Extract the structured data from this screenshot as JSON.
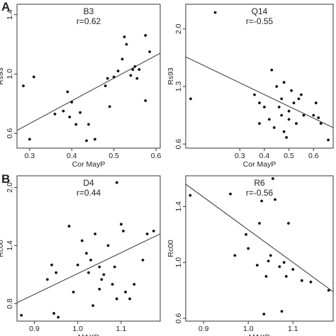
{
  "panel_letters": [
    "A",
    "B"
  ],
  "chart_data": [
    {
      "type": "scatter",
      "title": "B3",
      "subtitle": "r=0.62",
      "xlabel": "Cor MayP",
      "ylabel": "Rs93",
      "xlim": [
        0.27,
        0.61
      ],
      "ylim": [
        0.5,
        1.47
      ],
      "xticks": [
        0.3,
        0.4,
        0.5,
        0.6
      ],
      "xtick_labels": [
        "0.3",
        "0.4",
        "0.5",
        "0.6"
      ],
      "yticks": [
        0.6,
        1.0,
        1.4
      ],
      "ytick_labels": [
        "0.6",
        "1.0",
        "1.4"
      ],
      "fit_line": [
        [
          0.27,
          0.62
        ],
        [
          0.61,
          1.14
        ]
      ],
      "points": [
        [
          0.285,
          0.92
        ],
        [
          0.3,
          0.56
        ],
        [
          0.31,
          0.98
        ],
        [
          0.36,
          0.73
        ],
        [
          0.38,
          0.75
        ],
        [
          0.39,
          0.88
        ],
        [
          0.395,
          0.71
        ],
        [
          0.4,
          0.81
        ],
        [
          0.41,
          0.66
        ],
        [
          0.42,
          0.74
        ],
        [
          0.435,
          0.55
        ],
        [
          0.44,
          0.66
        ],
        [
          0.455,
          0.56
        ],
        [
          0.48,
          0.92
        ],
        [
          0.485,
          0.97
        ],
        [
          0.49,
          0.78
        ],
        [
          0.5,
          0.98
        ],
        [
          0.51,
          1.02
        ],
        [
          0.52,
          1.1
        ],
        [
          0.525,
          1.25
        ],
        [
          0.53,
          1.2
        ],
        [
          0.54,
          0.99
        ],
        [
          0.545,
          1.03
        ],
        [
          0.55,
          1.05
        ],
        [
          0.555,
          0.97
        ],
        [
          0.56,
          1.03
        ],
        [
          0.575,
          0.82
        ],
        [
          0.575,
          1.26
        ],
        [
          0.585,
          1.15
        ]
      ]
    },
    {
      "type": "scatter",
      "title": "Q14",
      "subtitle": "r=-0.55",
      "xlabel": "Cor MayP",
      "ylabel": "Rs93",
      "xlim": [
        0.08,
        0.68
      ],
      "ylim": [
        0.55,
        2.3
      ],
      "xticks": [
        0.3,
        0.4,
        0.5,
        0.6
      ],
      "xtick_labels": [
        "0.3",
        "0.4",
        "0.5",
        "0.6"
      ],
      "yticks": [
        0.6,
        1.3,
        2.0
      ],
      "ytick_labels": [
        "0.6",
        "1.3",
        "2.0"
      ],
      "fit_line": [
        [
          0.08,
          1.66
        ],
        [
          0.68,
          0.8
        ]
      ],
      "points": [
        [
          0.1,
          1.15
        ],
        [
          0.2,
          2.2
        ],
        [
          0.36,
          1.2
        ],
        [
          0.38,
          1.1
        ],
        [
          0.38,
          0.85
        ],
        [
          0.4,
          1.05
        ],
        [
          0.42,
          0.9
        ],
        [
          0.43,
          1.5
        ],
        [
          0.44,
          0.8
        ],
        [
          0.45,
          1.3
        ],
        [
          0.46,
          1.05
        ],
        [
          0.47,
          1.15
        ],
        [
          0.47,
          0.95
        ],
        [
          0.48,
          1.35
        ],
        [
          0.48,
          0.75
        ],
        [
          0.49,
          0.68
        ],
        [
          0.5,
          1.0
        ],
        [
          0.5,
          0.9
        ],
        [
          0.51,
          1.25
        ],
        [
          0.52,
          1.1
        ],
        [
          0.53,
          0.85
        ],
        [
          0.54,
          1.15
        ],
        [
          0.55,
          1.2
        ],
        [
          0.56,
          0.95
        ],
        [
          0.6,
          0.95
        ],
        [
          0.61,
          1.1
        ],
        [
          0.62,
          0.92
        ],
        [
          0.63,
          0.85
        ],
        [
          0.66,
          0.65
        ]
      ]
    },
    {
      "type": "scatter",
      "title": "D4",
      "subtitle": "r=0.44",
      "xlabel": "MAXD",
      "ylabel": "Rc00",
      "xlim": [
        0.86,
        1.19
      ],
      "ylim": [
        0.62,
        2.12
      ],
      "xticks": [
        0.9,
        1.0,
        1.1
      ],
      "xtick_labels": [
        "0.9",
        "1.0",
        "1.1"
      ],
      "yticks": [
        0.8,
        1.4,
        2.0
      ],
      "ytick_labels": [
        "0.8",
        "1.4",
        "2.0"
      ],
      "fit_line": [
        [
          0.86,
          0.81
        ],
        [
          1.19,
          1.52
        ]
      ],
      "points": [
        [
          0.87,
          0.68
        ],
        [
          0.93,
          1.05
        ],
        [
          0.94,
          1.2
        ],
        [
          0.945,
          0.7
        ],
        [
          0.95,
          1.12
        ],
        [
          0.955,
          0.66
        ],
        [
          0.98,
          1.6
        ],
        [
          0.99,
          0.92
        ],
        [
          1.0,
          1.2
        ],
        [
          1.01,
          1.45
        ],
        [
          1.02,
          1.32
        ],
        [
          1.025,
          1.12
        ],
        [
          1.03,
          1.25
        ],
        [
          1.035,
          0.78
        ],
        [
          1.04,
          1.52
        ],
        [
          1.05,
          1.18
        ],
        [
          1.05,
          0.95
        ],
        [
          1.055,
          1.05
        ],
        [
          1.06,
          1.1
        ],
        [
          1.07,
          1.4
        ],
        [
          1.08,
          1.0
        ],
        [
          1.085,
          1.18
        ],
        [
          1.09,
          2.05
        ],
        [
          1.09,
          0.85
        ],
        [
          1.1,
          1.62
        ],
        [
          1.105,
          1.55
        ],
        [
          1.11,
          0.92
        ],
        [
          1.12,
          0.85
        ],
        [
          1.13,
          1.0
        ],
        [
          1.15,
          1.25
        ],
        [
          1.16,
          1.52
        ],
        [
          1.175,
          1.55
        ]
      ]
    },
    {
      "type": "scatter",
      "title": "R6",
      "subtitle": "r=-0.56",
      "xlabel": "MAXD",
      "ylabel": "Rc00",
      "xlim": [
        0.86,
        1.19
      ],
      "ylim": [
        0.58,
        1.62
      ],
      "xticks": [
        0.9,
        1.0,
        1.1
      ],
      "xtick_labels": [
        "0.9",
        "1.0",
        "1.1"
      ],
      "yticks": [
        0.6,
        1.0,
        1.4
      ],
      "ytick_labels": [
        "0.6",
        "1.0",
        "1.4"
      ],
      "fit_line": [
        [
          0.86,
          1.56
        ],
        [
          1.19,
          0.79
        ]
      ],
      "points": [
        [
          0.87,
          1.48
        ],
        [
          0.96,
          1.49
        ],
        [
          0.97,
          1.05
        ],
        [
          0.995,
          1.2
        ],
        [
          1.0,
          1.1
        ],
        [
          1.02,
          0.98
        ],
        [
          1.025,
          1.28
        ],
        [
          1.03,
          1.44
        ],
        [
          1.035,
          0.63
        ],
        [
          1.04,
          0.9
        ],
        [
          1.045,
          1.01
        ],
        [
          1.05,
          1.05
        ],
        [
          1.055,
          1.6
        ],
        [
          1.06,
          1.45
        ],
        [
          1.07,
          0.97
        ],
        [
          1.075,
          0.65
        ],
        [
          1.08,
          1.0
        ],
        [
          1.085,
          0.9
        ],
        [
          1.09,
          1.28
        ],
        [
          1.1,
          0.95
        ],
        [
          1.12,
          0.87
        ],
        [
          1.14,
          0.86
        ],
        [
          1.18,
          0.8
        ]
      ]
    }
  ]
}
